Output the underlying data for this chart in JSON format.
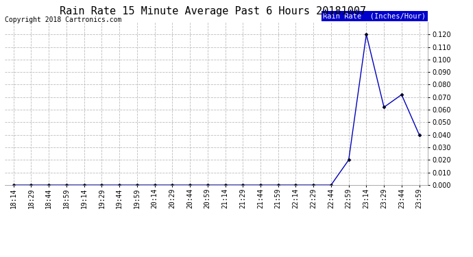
{
  "title": "Rain Rate 15 Minute Average Past 6 Hours 20181007",
  "copyright": "Copyright 2018 Cartronics.com",
  "legend_label": "Rain Rate  (Inches/Hour)",
  "x_labels": [
    "18:14",
    "18:29",
    "18:44",
    "18:59",
    "19:14",
    "19:29",
    "19:44",
    "19:59",
    "20:14",
    "20:29",
    "20:44",
    "20:59",
    "21:14",
    "21:29",
    "21:44",
    "21:59",
    "22:14",
    "22:29",
    "22:44",
    "22:59",
    "23:14",
    "23:29",
    "23:44",
    "23:59"
  ],
  "y_values": [
    0.0,
    0.0,
    0.0,
    0.0,
    0.0,
    0.0,
    0.0,
    0.0,
    0.0,
    0.0,
    0.0,
    0.0,
    0.0,
    0.0,
    0.0,
    0.0,
    0.0,
    0.0,
    0.0,
    0.02,
    0.12,
    0.062,
    0.072,
    0.04
  ],
  "ylim": [
    0.0,
    0.13
  ],
  "yticks": [
    0.0,
    0.01,
    0.02,
    0.03,
    0.04,
    0.05,
    0.06,
    0.07,
    0.08,
    0.09,
    0.1,
    0.11,
    0.12
  ],
  "line_color": "#0000bb",
  "marker_color": "#000022",
  "bg_color": "#ffffff",
  "grid_color": "#bbbbbb",
  "legend_bg": "#0000cc",
  "legend_fg": "#ffffff",
  "title_fontsize": 11,
  "copyright_fontsize": 7,
  "tick_fontsize": 7,
  "legend_fontsize": 7.5
}
